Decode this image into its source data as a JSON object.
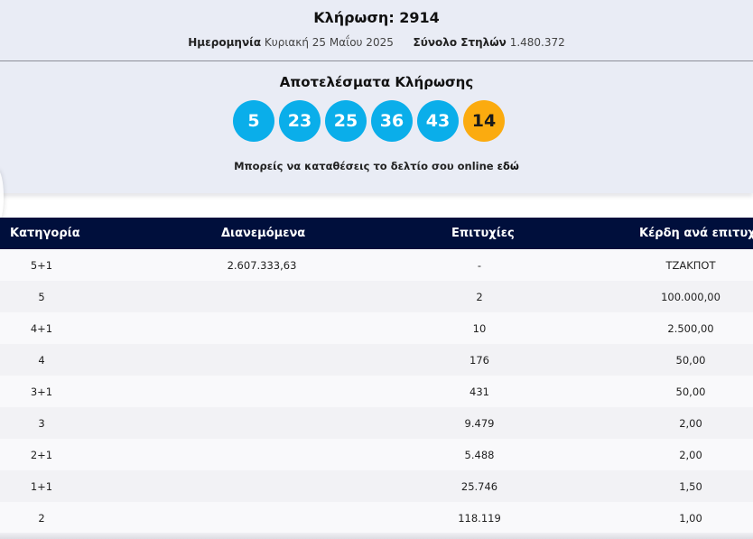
{
  "draw": {
    "title": "Κλήρωση: 2914",
    "date_label": "Ημερομηνία",
    "date_value": "Κυριακή 25 Μαΐου 2025",
    "columns_label": "Σύνολο Στηλών",
    "columns_value": "1.480.372"
  },
  "results": {
    "title": "Αποτελέσματα Κλήρωσης",
    "numbers": [
      "5",
      "23",
      "25",
      "36",
      "43"
    ],
    "bonus": "14",
    "deposit_text": "Μπορείς να καταθέσεις το δελτίο σου online",
    "deposit_link": "εδώ"
  },
  "colors": {
    "ball": "#0aaeea",
    "bonus_ball": "#fbab0f",
    "table_header": "#000f3c"
  },
  "table": {
    "headers": [
      "Κατηγορία",
      "Διανεμόμενα",
      "Επιτυχίες",
      "Κέρδη ανά επιτυχία"
    ],
    "rows": [
      [
        "5+1",
        "2.607.333,63",
        "-",
        "ΤΖΑΚΠΟΤ"
      ],
      [
        "5",
        "",
        "2",
        "100.000,00"
      ],
      [
        "4+1",
        "",
        "10",
        "2.500,00"
      ],
      [
        "4",
        "",
        "176",
        "50,00"
      ],
      [
        "3+1",
        "",
        "431",
        "50,00"
      ],
      [
        "3",
        "",
        "9.479",
        "2,00"
      ],
      [
        "2+1",
        "",
        "5.488",
        "2,00"
      ],
      [
        "1+1",
        "",
        "25.746",
        "1,50"
      ],
      [
        "2",
        "",
        "118.119",
        "1,00"
      ]
    ]
  }
}
